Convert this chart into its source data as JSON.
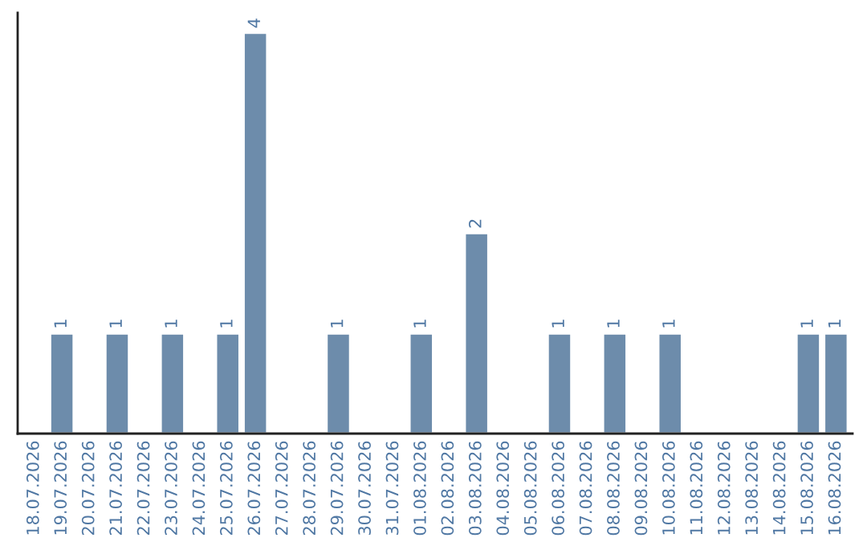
{
  "chart_data": {
    "type": "bar",
    "categories": [
      "18.07.2026",
      "19.07.2026",
      "20.07.2026",
      "21.07.2026",
      "22.07.2026",
      "23.07.2026",
      "24.07.2026",
      "25.07.2026",
      "26.07.2026",
      "27.07.2026",
      "28.07.2026",
      "29.07.2026",
      "30.07.2026",
      "31.07.2026",
      "01.08.2026",
      "02.08.2026",
      "03.08.2026",
      "04.08.2026",
      "05.08.2026",
      "06.08.2026",
      "07.08.2026",
      "08.08.2026",
      "09.08.2026",
      "10.08.2026",
      "11.08.2026",
      "12.08.2026",
      "13.08.2026",
      "14.08.2026",
      "15.08.2026",
      "16.08.2026"
    ],
    "values": [
      null,
      1,
      null,
      1,
      null,
      1,
      null,
      1,
      4,
      null,
      null,
      1,
      null,
      null,
      1,
      null,
      2,
      null,
      null,
      1,
      null,
      1,
      null,
      1,
      null,
      null,
      null,
      null,
      1,
      1
    ],
    "data_labels": true,
    "color": "#6d8cab",
    "tick_labels": "x",
    "grid": false,
    "legend": false
  }
}
